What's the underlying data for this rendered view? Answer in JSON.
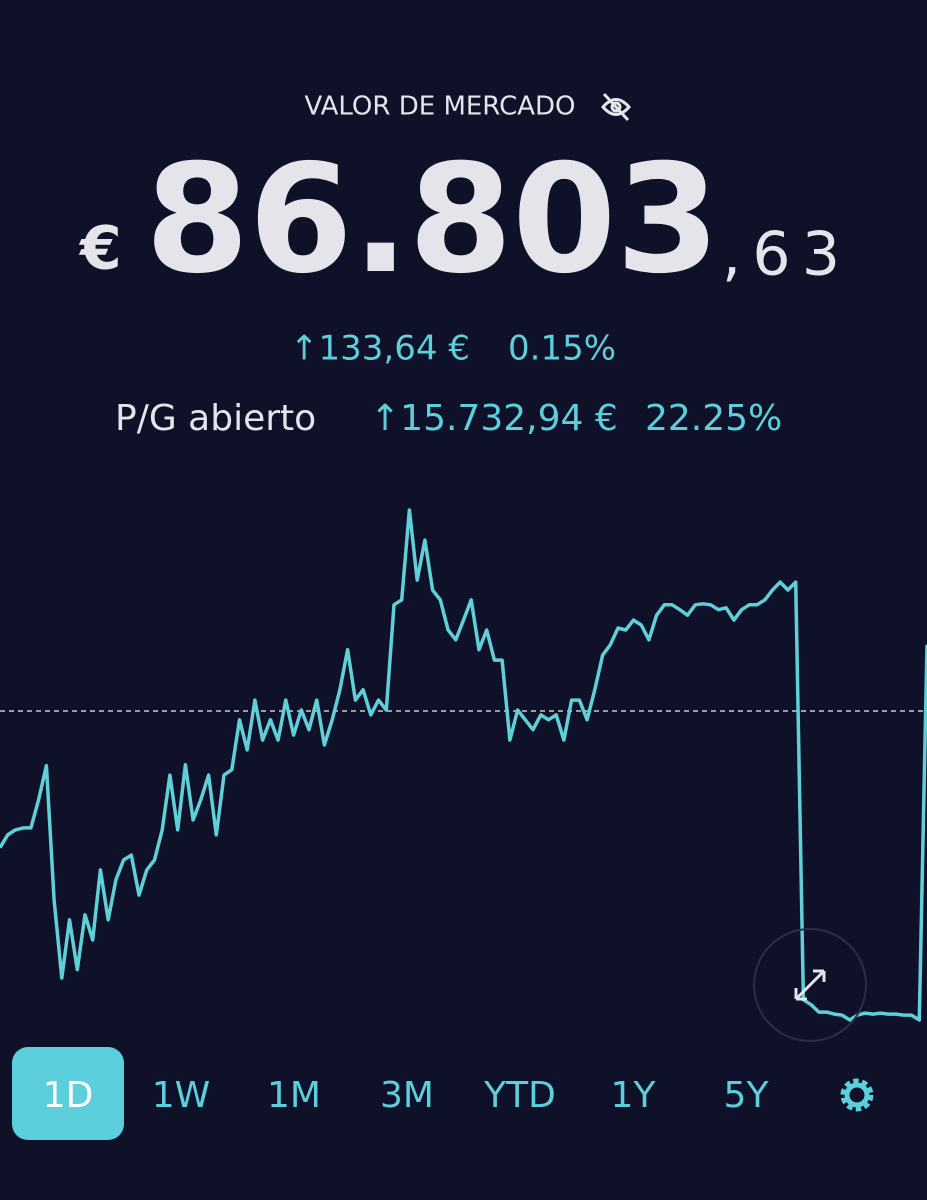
{
  "header": {
    "title": "VALOR DE MERCADO",
    "currency": "€",
    "value_main": "86.803",
    "value_decimals": ",63"
  },
  "day_change": {
    "amount": "↑133,64 €",
    "percent": "0.15%"
  },
  "open_pl": {
    "label": "P/G abierto",
    "amount": "↑15.732,94 €",
    "percent": "22.25%"
  },
  "chart_data": {
    "type": "line",
    "color": "#5fcfd8",
    "baseline": 86669.99,
    "values": [
      86393,
      86419,
      86429,
      86433,
      86433,
      86490,
      86559,
      86287,
      86129,
      86247,
      86146,
      86257,
      86206,
      86348,
      86247,
      86328,
      86368,
      86378,
      86297,
      86348,
      86368,
      86429,
      86540,
      86429,
      86561,
      86449,
      86490,
      86540,
      86419,
      86540,
      86551,
      86652,
      86591,
      86692,
      86611,
      86652,
      86611,
      86692,
      86621,
      86672,
      86632,
      86692,
      86601,
      86652,
      86713,
      86794,
      86692,
      86713,
      86662,
      86692,
      86672,
      86885,
      86895,
      87077,
      86935,
      87016,
      86915,
      86895,
      86834,
      86814,
      86854,
      86895,
      86794,
      86834,
      86773,
      86773,
      86611,
      86672,
      86652,
      86632,
      86662,
      86652,
      86662,
      86611,
      86692,
      86692,
      86652,
      86713,
      86783,
      86804,
      86838,
      86834,
      86854,
      86844,
      86814,
      86864,
      86885,
      86885,
      86875,
      86864,
      86885,
      86887,
      86885,
      86875,
      86879,
      86854,
      86875,
      86885,
      86885,
      86895,
      86915,
      86931,
      86915,
      86931,
      86085,
      86075,
      86060,
      86060,
      86056,
      86054,
      86044,
      86054,
      86058,
      86056,
      86058,
      86056,
      86056,
      86054,
      86054,
      86044,
      86804
    ]
  },
  "ranges": {
    "items": [
      "1D",
      "1W",
      "1M",
      "3M",
      "YTD",
      "1Y",
      "5Y"
    ],
    "selected": 0
  }
}
